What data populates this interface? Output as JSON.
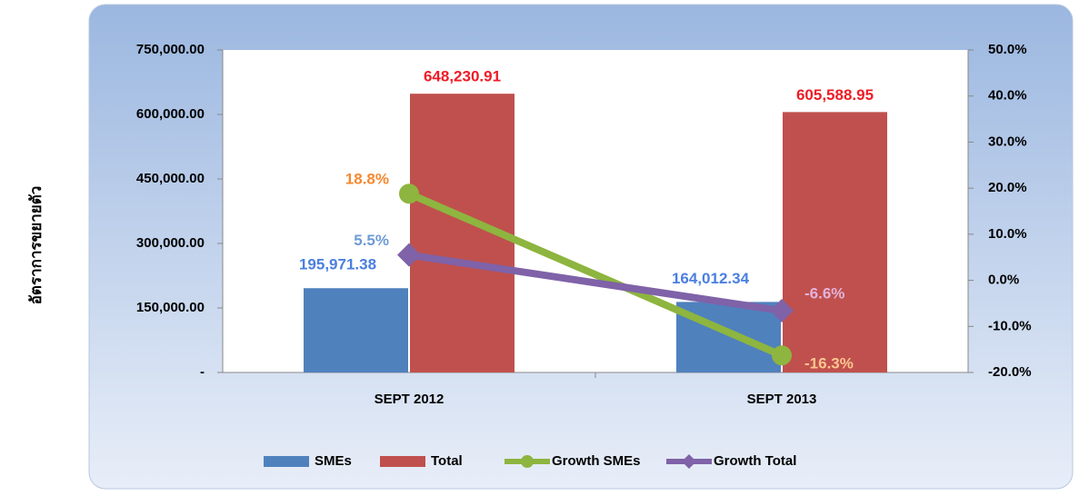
{
  "chart_data": {
    "type": "bar",
    "ylabel": "อัตราการขยายตัว",
    "categories": [
      "SEPT 2012",
      "SEPT 2013"
    ],
    "series": [
      {
        "name": "SMEs",
        "color": "#4f81bd",
        "values": [
          195971.38,
          164012.34
        ],
        "value_labels": [
          "195,971.38",
          "164,012.34"
        ],
        "label_colors": [
          "#4a7fe0",
          "#4a7fe0"
        ]
      },
      {
        "name": "Total",
        "color": "#c0504d",
        "values": [
          648230.91,
          605588.95
        ],
        "value_labels": [
          "648,230.91",
          "605,588.95"
        ],
        "label_colors": [
          "#ee1c25",
          "#ee1c25"
        ]
      },
      {
        "name": "Growth SMEs",
        "type": "line",
        "axis": "y2",
        "marker": "circle",
        "color": "#8db53f",
        "values": [
          18.8,
          -16.3
        ],
        "value_labels": [
          "18.8%",
          "-16.3%"
        ],
        "label_colors": [
          "#f7882f",
          "#fbc58f"
        ]
      },
      {
        "name": "Growth Total",
        "type": "line",
        "axis": "y2",
        "marker": "diamond",
        "color": "#7f62a8",
        "values": [
          5.5,
          -6.6
        ],
        "value_labels": [
          "5.5%",
          "-6.6%"
        ],
        "label_colors": [
          "#6d9bd6",
          "#e3b3dc"
        ]
      }
    ],
    "ylim": [
      0,
      750000
    ],
    "yticks": [
      {
        "value": 0,
        "label": "-"
      },
      {
        "value": 150000,
        "label": "150,000.00"
      },
      {
        "value": 300000,
        "label": "300,000.00"
      },
      {
        "value": 450000,
        "label": "450,000.00"
      },
      {
        "value": 600000,
        "label": "600,000.00"
      },
      {
        "value": 750000,
        "label": "750,000.00"
      }
    ],
    "y2lim": [
      -20,
      50
    ],
    "y2ticks": [
      {
        "value": -20,
        "label": "-20.0%"
      },
      {
        "value": -10,
        "label": "-10.0%"
      },
      {
        "value": 0,
        "label": "0.0%"
      },
      {
        "value": 10,
        "label": "10.0%"
      },
      {
        "value": 20,
        "label": "20.0%"
      },
      {
        "value": 30,
        "label": "30.0%"
      },
      {
        "value": 40,
        "label": "40.0%"
      },
      {
        "value": 50,
        "label": "50.0%"
      }
    ],
    "legend": "bottom"
  }
}
